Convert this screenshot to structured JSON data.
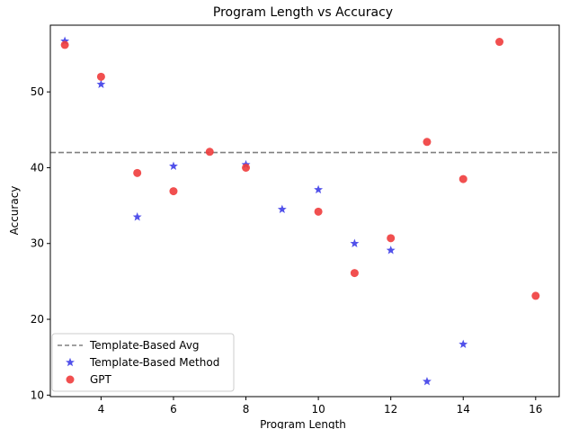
{
  "chart_data": {
    "type": "scatter",
    "title": "Program Length vs Accuracy",
    "xlabel": "Program Length",
    "ylabel": "Accuracy",
    "xlim": [
      2.6,
      16.65
    ],
    "ylim": [
      9.8,
      58.8
    ],
    "xticks": [
      "4",
      "6",
      "8",
      "10",
      "12",
      "14",
      "16"
    ],
    "yticks": [
      "10",
      "20",
      "30",
      "40",
      "50"
    ],
    "reference_line": {
      "name": "Template-Based Avg",
      "y": 42,
      "color": "#808080",
      "style": "dashed"
    },
    "series": [
      {
        "name": "Template-Based Method",
        "marker": "star",
        "color": "#3333e6",
        "points": [
          {
            "x": 3,
            "y": 56.7
          },
          {
            "x": 4,
            "y": 51.0
          },
          {
            "x": 5,
            "y": 33.5
          },
          {
            "x": 6,
            "y": 40.2
          },
          {
            "x": 8,
            "y": 40.4
          },
          {
            "x": 9,
            "y": 34.5
          },
          {
            "x": 10,
            "y": 37.1
          },
          {
            "x": 11,
            "y": 30.0
          },
          {
            "x": 12,
            "y": 29.1
          },
          {
            "x": 13,
            "y": 11.8
          },
          {
            "x": 14,
            "y": 16.7
          }
        ]
      },
      {
        "name": "GPT",
        "marker": "circle",
        "color": "#f03c3c",
        "points": [
          {
            "x": 3,
            "y": 56.2
          },
          {
            "x": 4,
            "y": 52.0
          },
          {
            "x": 5,
            "y": 39.3
          },
          {
            "x": 6,
            "y": 36.9
          },
          {
            "x": 7,
            "y": 42.1
          },
          {
            "x": 8,
            "y": 40.0
          },
          {
            "x": 10,
            "y": 34.2
          },
          {
            "x": 11,
            "y": 26.1
          },
          {
            "x": 12,
            "y": 30.7
          },
          {
            "x": 13,
            "y": 43.4
          },
          {
            "x": 14,
            "y": 38.5
          },
          {
            "x": 15,
            "y": 56.6
          },
          {
            "x": 16,
            "y": 23.1
          }
        ]
      }
    ],
    "legend": {
      "position": "lower-left",
      "entries": [
        "Template-Based Avg",
        "Template-Based Method",
        "GPT"
      ]
    }
  }
}
